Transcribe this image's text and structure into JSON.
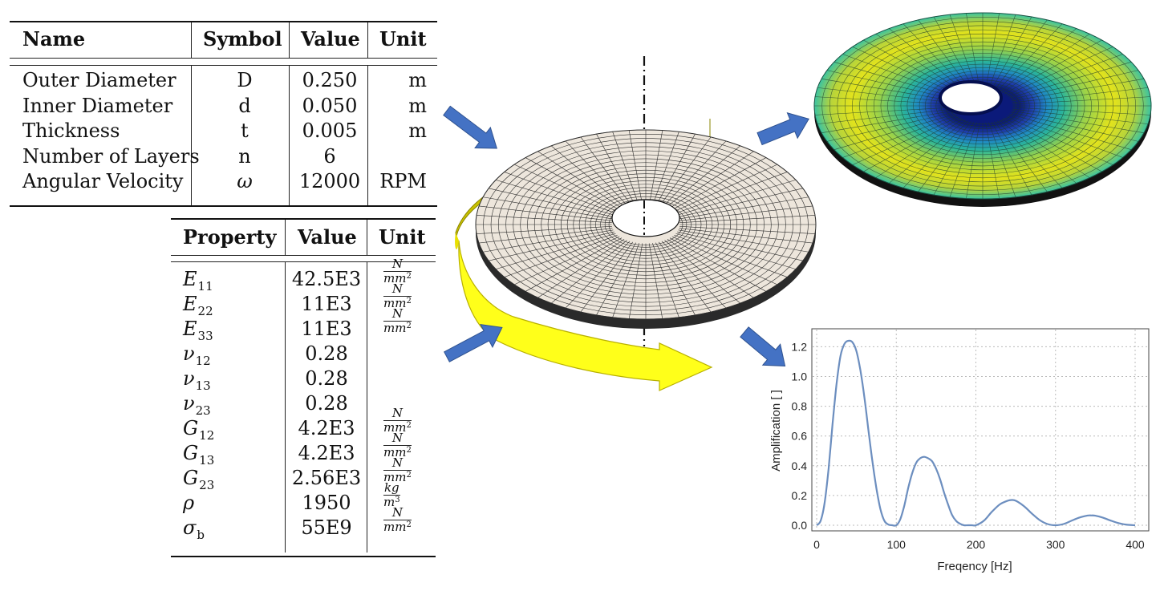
{
  "geometry_table": {
    "headers": [
      "Name",
      "Symbol",
      "Value",
      "Unit"
    ],
    "rows": [
      {
        "name": "Outer Diameter",
        "symbol": "D",
        "value": "0.250",
        "unit": "m"
      },
      {
        "name": "Inner Diameter",
        "symbol": "d",
        "value": "0.050",
        "unit": "m"
      },
      {
        "name": "Thickness",
        "symbol": "t",
        "value": "0.005",
        "unit": "m"
      },
      {
        "name": "Number of Layers",
        "symbol": "n",
        "value": "6",
        "unit": ""
      },
      {
        "name": "Angular Velocity",
        "symbol": "ω",
        "value": "12000",
        "unit": "RPM"
      }
    ]
  },
  "material_table": {
    "headers": [
      "Property",
      "Value",
      "Unit"
    ],
    "rows": [
      {
        "prop": "E",
        "sub": "11",
        "value": "42.5E3",
        "unit_num": "N",
        "unit_den": "mm",
        "unit_exp": "2"
      },
      {
        "prop": "E",
        "sub": "22",
        "value": "11E3",
        "unit_num": "N",
        "unit_den": "mm",
        "unit_exp": "2"
      },
      {
        "prop": "E",
        "sub": "33",
        "value": "11E3",
        "unit_num": "N",
        "unit_den": "mm",
        "unit_exp": "2"
      },
      {
        "prop": "ν",
        "sub": "12",
        "value": "0.28",
        "unit_num": "",
        "unit_den": "",
        "unit_exp": ""
      },
      {
        "prop": "ν",
        "sub": "13",
        "value": "0.28",
        "unit_num": "",
        "unit_den": "",
        "unit_exp": ""
      },
      {
        "prop": "ν",
        "sub": "23",
        "value": "0.28",
        "unit_num": "",
        "unit_den": "",
        "unit_exp": ""
      },
      {
        "prop": "G",
        "sub": "12",
        "value": "4.2E3",
        "unit_num": "N",
        "unit_den": "mm",
        "unit_exp": "2"
      },
      {
        "prop": "G",
        "sub": "13",
        "value": "4.2E3",
        "unit_num": "N",
        "unit_den": "mm",
        "unit_exp": "2"
      },
      {
        "prop": "G",
        "sub": "23",
        "value": "2.56E3",
        "unit_num": "N",
        "unit_den": "mm",
        "unit_exp": "2"
      },
      {
        "prop": "ρ",
        "sub": "",
        "value": "1950",
        "unit_num": "kg",
        "unit_den": "m",
        "unit_exp": "3"
      },
      {
        "prop": "σ",
        "sub": "b",
        "value": "55E9",
        "unit_num": "N",
        "unit_den": "mm",
        "unit_exp": "2"
      }
    ]
  },
  "colors": {
    "arrow_blue": "#4472c4",
    "rotation_yellow": "#ffff00",
    "mesh_face": "#ede6dc",
    "curve": "#6c8ebf"
  },
  "chart_data": {
    "type": "line",
    "xlabel": "Freqency [Hz]",
    "ylabel": "Amplification [ ]",
    "xlim": [
      0,
      400
    ],
    "ylim": [
      0,
      1.3
    ],
    "xticks": [
      "0",
      "100",
      "200",
      "300",
      "400"
    ],
    "yticks": [
      "0.0",
      "0.2",
      "0.4",
      "0.6",
      "0.8",
      "1.0",
      "1.2"
    ],
    "grid": true,
    "series": [
      {
        "x": [
          0,
          5,
          10,
          15,
          20,
          25,
          30,
          35,
          40,
          45,
          50,
          55,
          60,
          65,
          70,
          75,
          80,
          85,
          90,
          95,
          100,
          105,
          110,
          115,
          120,
          125,
          130,
          135,
          140,
          145,
          150,
          155,
          160,
          165,
          170,
          175,
          180,
          185,
          190,
          195,
          200,
          210,
          220,
          230,
          240,
          245,
          250,
          260,
          270,
          280,
          290,
          300,
          310,
          320,
          330,
          340,
          345,
          350,
          360,
          370,
          380,
          390,
          400
        ],
        "y": [
          0.0,
          0.03,
          0.15,
          0.38,
          0.68,
          0.95,
          1.14,
          1.22,
          1.24,
          1.23,
          1.17,
          1.04,
          0.86,
          0.64,
          0.43,
          0.25,
          0.11,
          0.03,
          0.005,
          0.0,
          0.0,
          0.04,
          0.13,
          0.25,
          0.35,
          0.42,
          0.45,
          0.46,
          0.45,
          0.43,
          0.38,
          0.31,
          0.22,
          0.14,
          0.07,
          0.03,
          0.01,
          0.0,
          0.0,
          0.0,
          0.0,
          0.03,
          0.09,
          0.14,
          0.165,
          0.17,
          0.165,
          0.13,
          0.08,
          0.035,
          0.008,
          0.0,
          0.008,
          0.03,
          0.052,
          0.065,
          0.066,
          0.064,
          0.05,
          0.03,
          0.013,
          0.003,
          0.0
        ]
      }
    ]
  }
}
